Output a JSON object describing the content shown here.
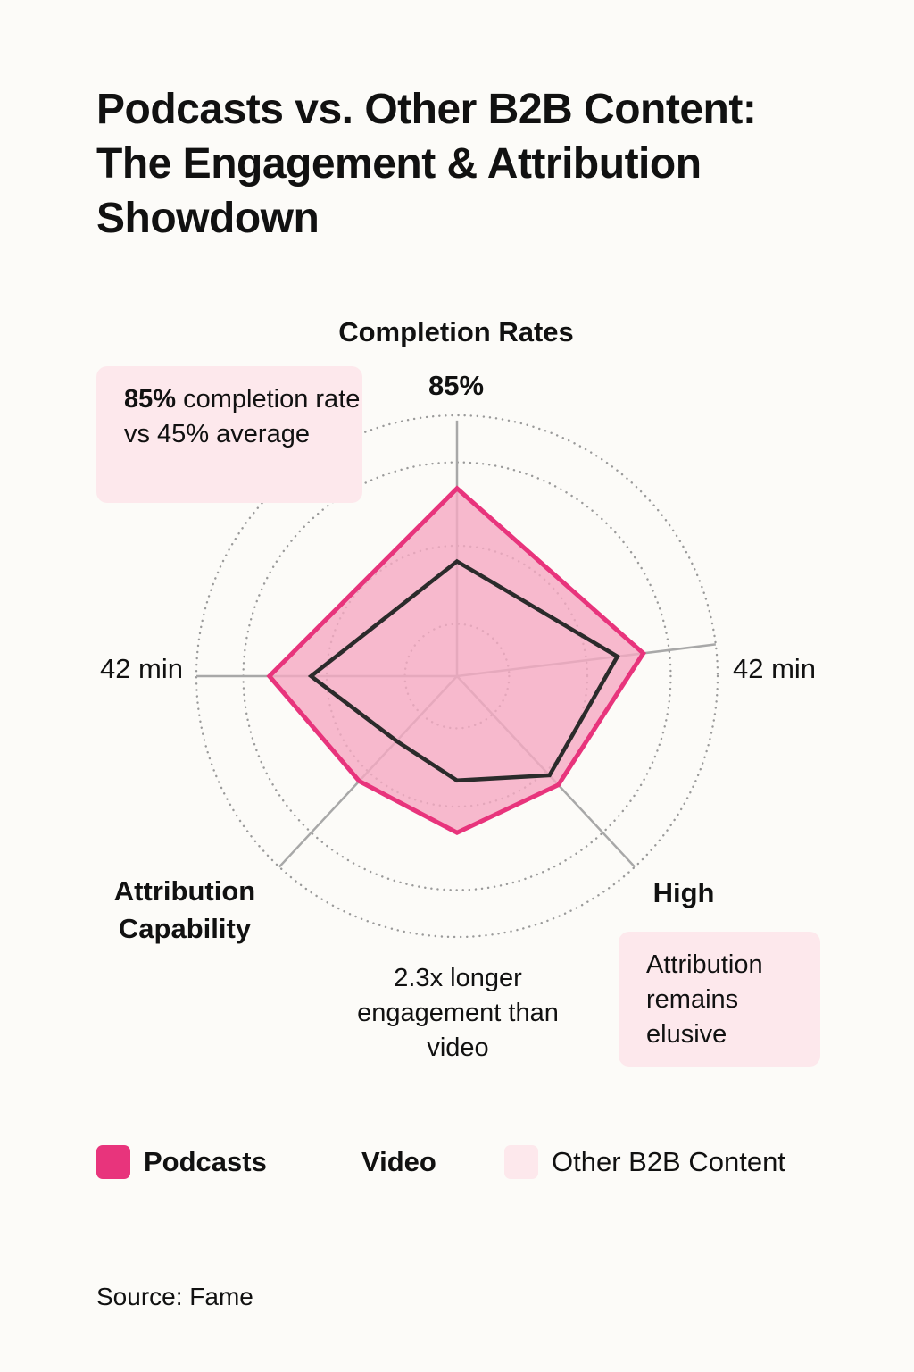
{
  "title_lines": [
    "Podcasts vs. Other B2B Content:",
    "The Engagement & Attribution",
    "Showdown"
  ],
  "chart_data": {
    "type": "radar",
    "axes": [
      {
        "label": "Completion Rates",
        "value_label": "85%"
      },
      {
        "label": "",
        "value_label": "42 min"
      },
      {
        "label": "High",
        "value_label": ""
      },
      {
        "label": "",
        "value_label": ""
      },
      {
        "label": "Attribution Capability",
        "value_label": ""
      },
      {
        "label": "",
        "value_label": "42 min"
      }
    ],
    "rmax": 100,
    "ring_levels": [
      20,
      50,
      82,
      100
    ],
    "series": [
      {
        "name": "Podcasts",
        "values": [
          72,
          72,
          57,
          60,
          55,
          72
        ]
      },
      {
        "name": "Video",
        "values": [
          44,
          62,
          52,
          40,
          34,
          56
        ]
      }
    ],
    "grid": "dotted-circular",
    "legend_position": "bottom"
  },
  "callouts": {
    "completion": {
      "bold": "85%",
      "rest": " completion rate vs 45% average"
    },
    "engagement": "2.3x longer engagement than video",
    "attribution": "Attribution remains elusive"
  },
  "legend": [
    {
      "name": "Podcasts",
      "color": "#e8347c"
    },
    {
      "name": "Video",
      "color": "#222222"
    },
    {
      "name": "Other B2B Content",
      "color": "#fde8ec"
    }
  ],
  "colors": {
    "podcast_stroke": "#e8347c",
    "podcast_fill": "#f5a9c2",
    "video_stroke": "#2b2b2b",
    "axis": "#a8a8a8",
    "grid": "#9a9a9a"
  },
  "source": "Source: Fame"
}
